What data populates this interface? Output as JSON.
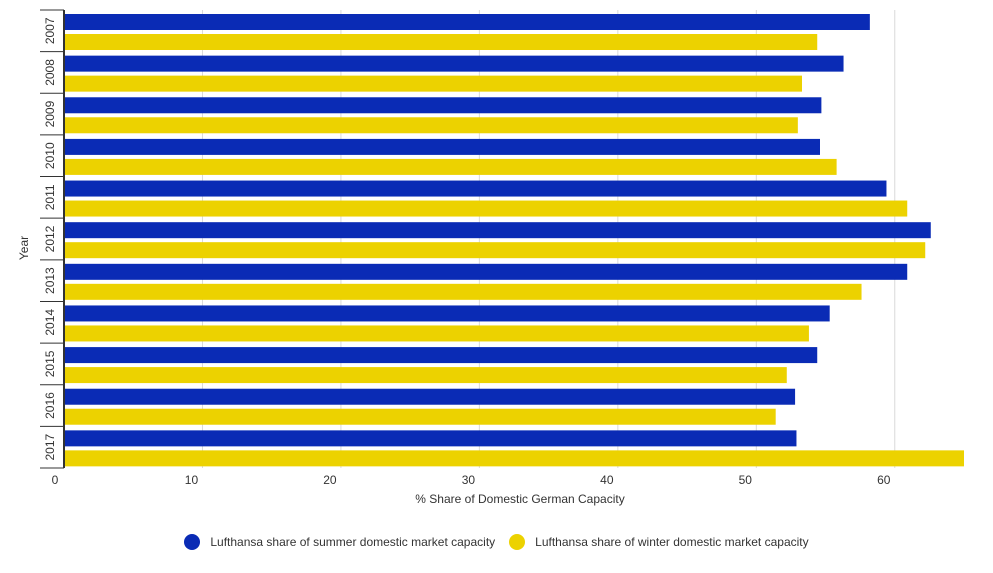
{
  "chart_data": {
    "type": "bar",
    "orientation": "horizontal",
    "title": "",
    "xlabel": "% Share of Domestic German Capacity",
    "ylabel": "Year",
    "xlim": [
      0,
      65
    ],
    "x_ticks": [
      0,
      10,
      20,
      30,
      40,
      50,
      60
    ],
    "grid": true,
    "legend_position": "bottom-center",
    "categories": [
      "2007",
      "2008",
      "2009",
      "2010",
      "2011",
      "2012",
      "2013",
      "2014",
      "2015",
      "2016",
      "2017"
    ],
    "series": [
      {
        "name": "Lufthansa share of summer domestic market capacity",
        "color": "#0a2bb5",
        "values": [
          58.2,
          56.3,
          54.7,
          54.6,
          59.4,
          62.6,
          60.9,
          55.3,
          54.4,
          52.8,
          52.9
        ]
      },
      {
        "name": "Lufthansa share of winter domestic market capacity",
        "color": "#ecd200",
        "values": [
          54.4,
          53.3,
          53.0,
          55.8,
          60.9,
          62.2,
          57.6,
          53.8,
          52.2,
          51.4,
          65.0
        ]
      }
    ]
  }
}
